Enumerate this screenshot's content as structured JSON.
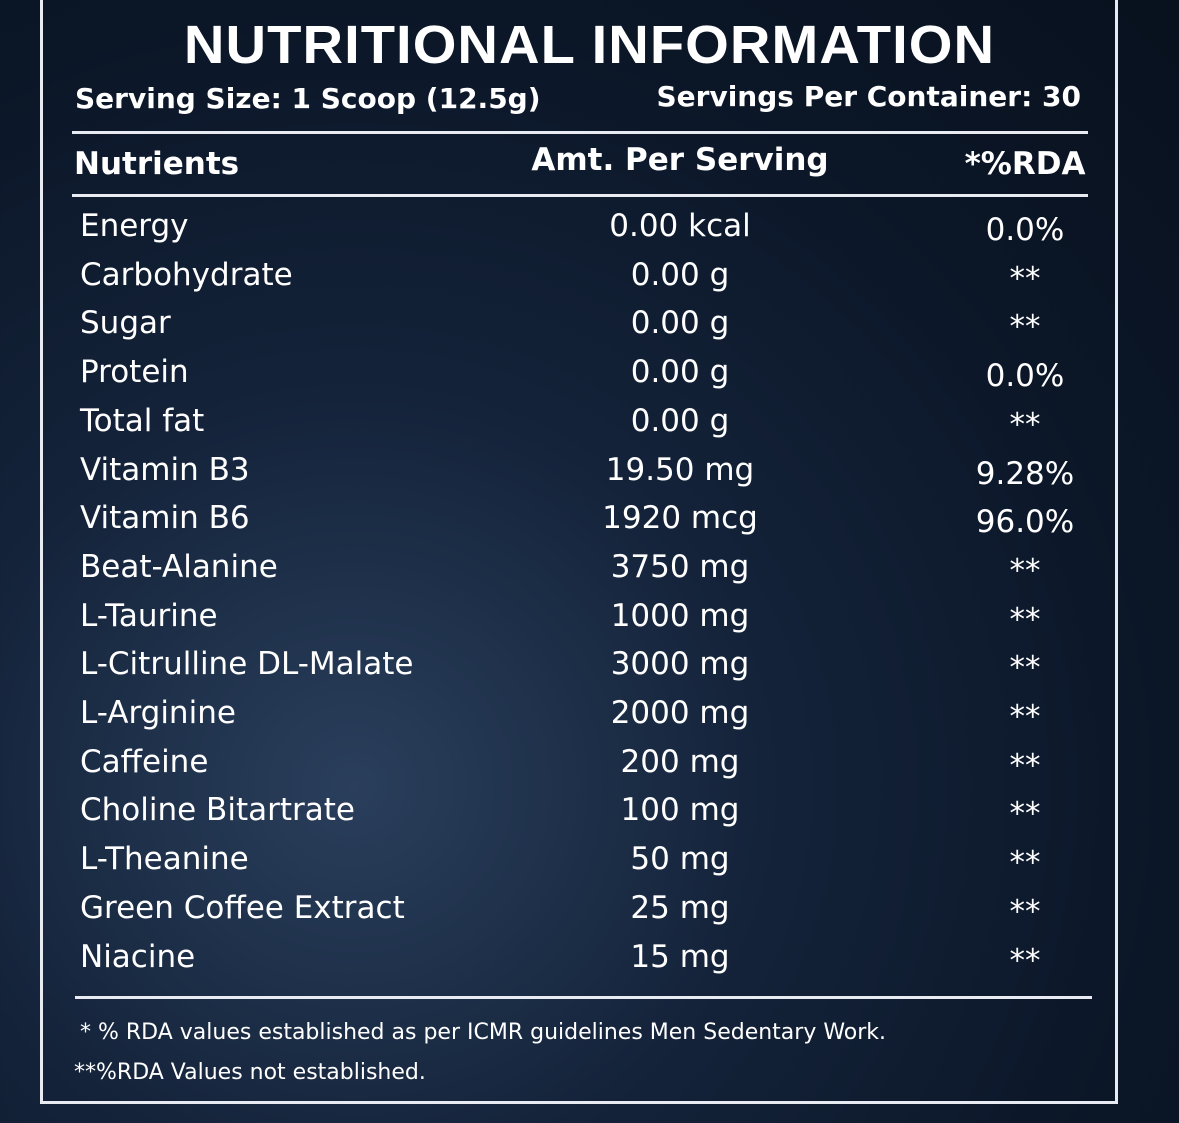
{
  "header": {
    "title": "NUTRITIONAL INFORMATION",
    "serving_size": "Serving Size: 1 Scoop (12.5g)",
    "servings_per_container": "Servings Per Container: 30"
  },
  "table": {
    "columns": [
      "Nutrients",
      "Amt. Per Serving",
      "*%RDA"
    ],
    "rows": [
      [
        "Energy",
        "0.00 kcal",
        "0.0%"
      ],
      [
        "Carbohydrate",
        "0.00 g",
        "**"
      ],
      [
        "Sugar",
        "0.00 g",
        "**"
      ],
      [
        "Protein",
        "0.00 g",
        "0.0%"
      ],
      [
        "Total fat",
        "0.00 g",
        "**"
      ],
      [
        "Vitamin B3",
        "19.50 mg",
        "9.28%"
      ],
      [
        "Vitamin B6",
        "1920 mcg",
        "96.0%"
      ],
      [
        "Beat-Alanine",
        "3750 mg",
        "**"
      ],
      [
        "L-Taurine",
        "1000 mg",
        "**"
      ],
      [
        "L-Citrulline DL-Malate",
        "3000 mg",
        "**"
      ],
      [
        "L-Arginine",
        "2000 mg",
        "**"
      ],
      [
        "Caffeine",
        "200 mg",
        "**"
      ],
      [
        "Choline Bitartrate",
        "100 mg",
        "**"
      ],
      [
        "L-Theanine",
        "50 mg",
        "**"
      ],
      [
        "Green Coffee Extract",
        "25 mg",
        "**"
      ],
      [
        "Niacine",
        "15 mg",
        "**"
      ]
    ]
  },
  "footnotes": [
    "* % RDA values established as per ICMR guidelines Men Sedentary Work.",
    "**%RDA Values not established."
  ]
}
